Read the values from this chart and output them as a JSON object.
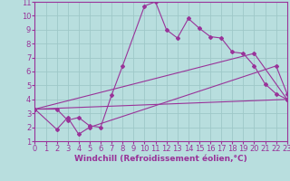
{
  "background_color": "#b8dede",
  "grid_color": "#9ec8c8",
  "line_color": "#993399",
  "xlim": [
    0,
    23
  ],
  "ylim": [
    1,
    11
  ],
  "xlabel": "Windchill (Refroidissement éolien,°C)",
  "xlabel_fontsize": 6.5,
  "xticks": [
    0,
    1,
    2,
    3,
    4,
    5,
    6,
    7,
    8,
    9,
    10,
    11,
    12,
    13,
    14,
    15,
    16,
    17,
    18,
    19,
    20,
    21,
    22,
    23
  ],
  "yticks": [
    1,
    2,
    3,
    4,
    5,
    6,
    7,
    8,
    9,
    10,
    11
  ],
  "tick_fontsize": 6.0,
  "tick_color": "#993399",
  "label_color": "#993399",
  "series": [
    {
      "x": [
        0,
        2,
        3,
        4,
        5,
        6,
        7,
        8,
        10,
        11,
        12,
        13,
        14,
        15,
        16,
        17,
        18,
        19,
        20,
        21,
        22,
        23
      ],
      "y": [
        3.3,
        3.3,
        2.5,
        2.7,
        2.1,
        2.0,
        4.3,
        6.4,
        10.7,
        11.0,
        9.0,
        8.4,
        9.8,
        9.1,
        8.5,
        8.4,
        7.4,
        7.3,
        6.4,
        5.1,
        4.4,
        4.0
      ]
    },
    {
      "x": [
        0,
        2,
        3,
        4,
        5,
        22,
        23
      ],
      "y": [
        3.3,
        1.85,
        2.7,
        1.5,
        2.0,
        6.4,
        4.4
      ]
    },
    {
      "x": [
        0,
        20,
        23
      ],
      "y": [
        3.3,
        7.3,
        4.0
      ]
    },
    {
      "x": [
        0,
        23
      ],
      "y": [
        3.3,
        4.0
      ]
    }
  ]
}
